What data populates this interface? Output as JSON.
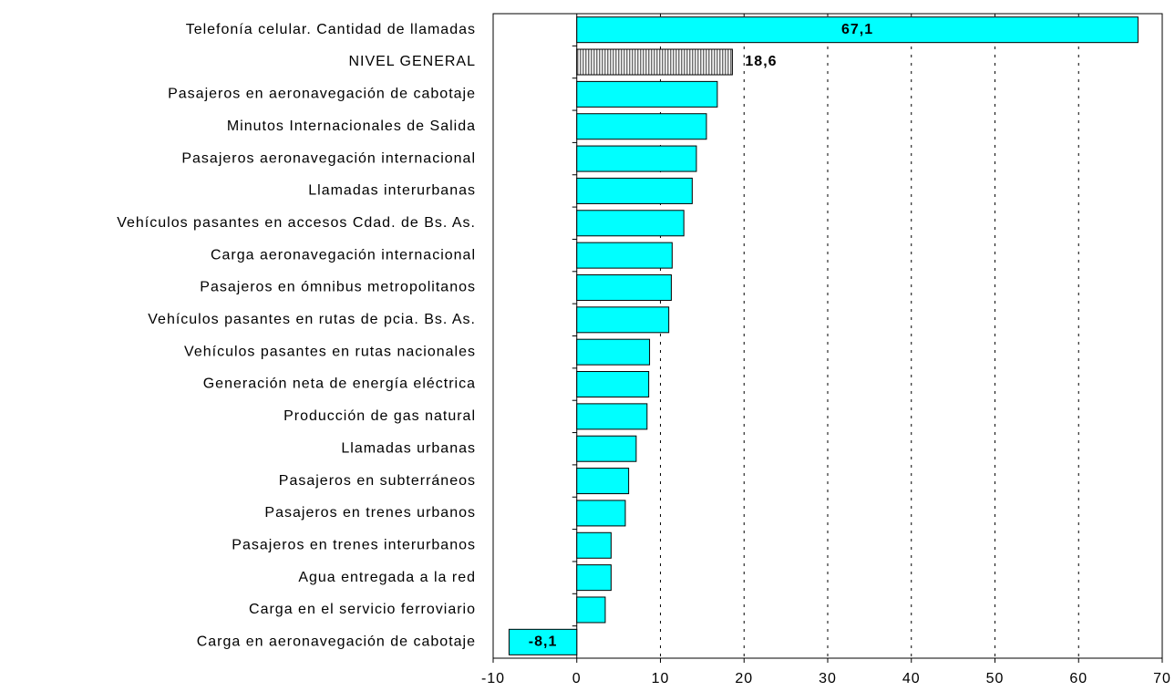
{
  "chart_data": {
    "type": "bar",
    "orientation": "horizontal",
    "categories": [
      "Telefonía celular. Cantidad de llamadas",
      "NIVEL GENERAL",
      "Pasajeros en aeronavegación de cabotaje",
      "Minutos Internacionales de Salida",
      "Pasajeros aeronavegación internacional",
      "Llamadas interurbanas",
      "Vehículos pasantes en accesos Cdad. de Bs. As.",
      "Carga aeronavegación internacional",
      "Pasajeros en ómnibus metropolitanos",
      "Vehículos pasantes en rutas de pcia. Bs. As.",
      "Vehículos pasantes en rutas nacionales",
      "Generación neta de energía eléctrica",
      "Producción de gas natural",
      "Llamadas urbanas",
      "Pasajeros en subterráneos",
      "Pasajeros en trenes urbanos",
      "Pasajeros en trenes interurbanos",
      "Agua entregada a la red",
      "Carga en el servicio ferroviario",
      "Carga en aeronavegación de cabotaje"
    ],
    "values": [
      67.1,
      18.6,
      16.8,
      15.5,
      14.3,
      13.8,
      12.8,
      11.4,
      11.3,
      11.0,
      8.7,
      8.6,
      8.4,
      7.1,
      6.2,
      5.8,
      4.1,
      4.1,
      3.4,
      -8.1
    ],
    "value_labels": [
      "67,1",
      "18,6",
      null,
      null,
      null,
      null,
      null,
      null,
      null,
      null,
      null,
      null,
      null,
      null,
      null,
      null,
      null,
      null,
      null,
      "-8,1"
    ],
    "color": "#00ffff",
    "hatched": [
      1
    ],
    "hatch_color": "#707070",
    "xlim": [
      -10,
      70
    ],
    "xticks": [
      -10,
      0,
      10,
      20,
      30,
      40,
      50,
      60,
      70
    ],
    "grid": true
  }
}
